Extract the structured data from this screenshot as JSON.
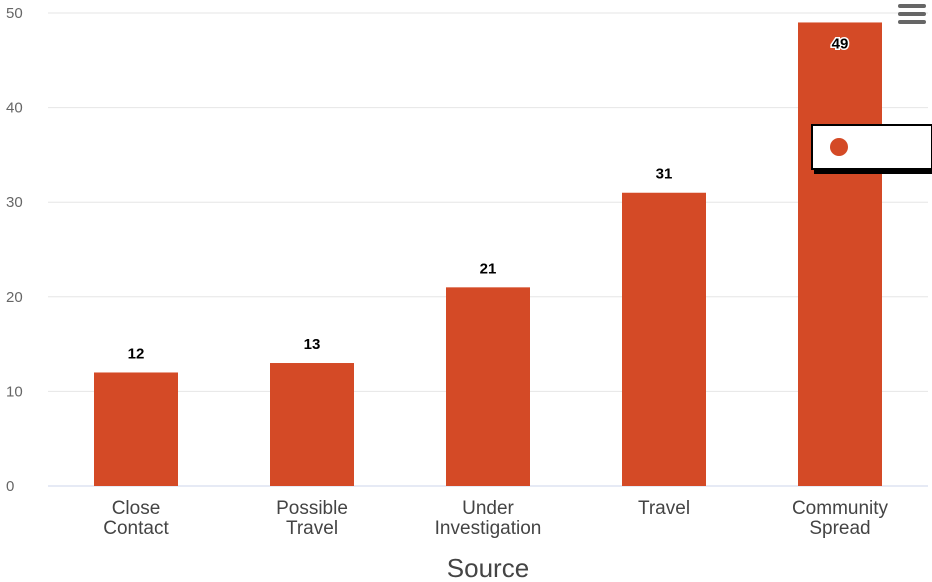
{
  "chart_data": {
    "type": "bar",
    "categories": [
      [
        "Close",
        "Contact"
      ],
      [
        "Possible",
        "Travel"
      ],
      [
        "Under",
        "Investigation"
      ],
      [
        "Travel"
      ],
      [
        "Community",
        "Spread"
      ]
    ],
    "series": [
      {
        "name": "",
        "values": [
          12,
          13,
          21,
          31,
          49
        ],
        "color": "#d44a26"
      }
    ],
    "yticks": [
      "0",
      "10",
      "20",
      "30",
      "40",
      "50"
    ],
    "ylim": [
      0,
      50
    ],
    "xlabel": "Source",
    "ylabel": "",
    "title": "",
    "grid": true,
    "legend": {
      "placement": "right",
      "entries": [
        ""
      ]
    },
    "data_labels": true
  },
  "menu": {
    "icon": "hamburger-menu-icon"
  },
  "colors": {
    "bar": "#d44a26",
    "grid": "#e6e6e6",
    "axis": "#ccd6eb"
  }
}
